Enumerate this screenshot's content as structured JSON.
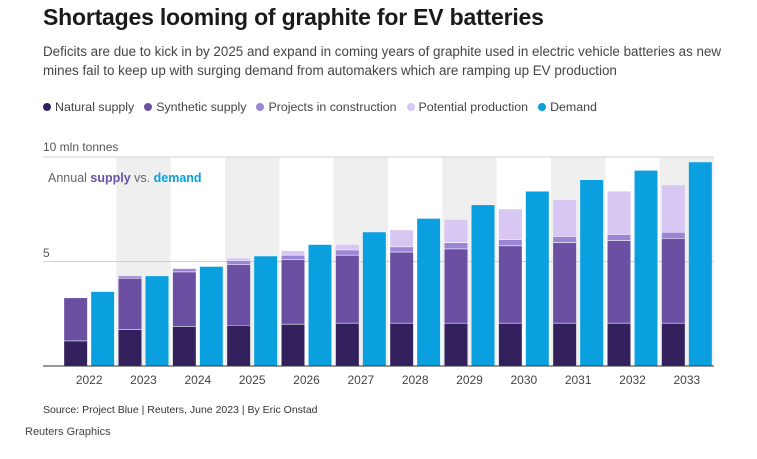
{
  "title": "Shortages looming of graphite for EV batteries",
  "subtitle": "Deficits are due to kick in by 2025 and expand in coming years of graphite used in electric vehicle batteries as new mines fail to keep up with surging demand from automakers which are ramping up EV production",
  "source": "Source: Project Blue | Reuters, June 2023 | By Eric Onstad",
  "credit": "Reuters Graphics",
  "colors": {
    "natural": "#33215e",
    "synthetic": "#6a4fa3",
    "construction": "#9b86d6",
    "potential": "#d8c6f3",
    "demand": "#0aa0e0",
    "band": "#efefef"
  },
  "chart_data": {
    "type": "bar",
    "categories": [
      "2022",
      "2023",
      "2024",
      "2025",
      "2026",
      "2027",
      "2028",
      "2029",
      "2030",
      "2031",
      "2032",
      "2033"
    ],
    "y_unit_label": "10 mln tonnes",
    "y_tick_labels": [
      "5"
    ],
    "ylim": [
      0,
      10
    ],
    "annotation": {
      "prefix": "Annual ",
      "supply": "supply",
      "mid": " vs. ",
      "demand": "demand"
    },
    "supply_stack": [
      {
        "name": "Natural supply",
        "color_key": "natural",
        "values": [
          1.2,
          1.75,
          1.9,
          1.95,
          2.0,
          2.05,
          2.05,
          2.05,
          2.05,
          2.05,
          2.05,
          2.05
        ]
      },
      {
        "name": "Synthetic supply",
        "color_key": "synthetic",
        "values": [
          2.05,
          2.45,
          2.6,
          2.9,
          3.1,
          3.25,
          3.4,
          3.55,
          3.7,
          3.85,
          3.95,
          4.05
        ]
      },
      {
        "name": "Projects in construction",
        "color_key": "construction",
        "values": [
          0.0,
          0.1,
          0.15,
          0.2,
          0.2,
          0.25,
          0.25,
          0.3,
          0.3,
          0.3,
          0.3,
          0.3
        ]
      },
      {
        "name": "Potential production",
        "color_key": "potential",
        "values": [
          0.0,
          0.0,
          0.0,
          0.1,
          0.2,
          0.25,
          0.8,
          1.1,
          1.45,
          1.75,
          2.05,
          2.25
        ]
      }
    ],
    "demand": {
      "name": "Demand",
      "color_key": "demand",
      "values": [
        3.55,
        4.3,
        4.75,
        5.25,
        5.8,
        6.4,
        7.05,
        7.7,
        8.35,
        8.9,
        9.35,
        9.75
      ]
    },
    "legend": [
      {
        "label": "Natural supply",
        "color_key": "natural"
      },
      {
        "label": "Synthetic supply",
        "color_key": "synthetic"
      },
      {
        "label": "Projects in construction",
        "color_key": "construction"
      },
      {
        "label": "Potential production",
        "color_key": "potential"
      },
      {
        "label": "Demand",
        "color_key": "demand"
      }
    ],
    "grid": true,
    "alternating_year_bands": true
  }
}
